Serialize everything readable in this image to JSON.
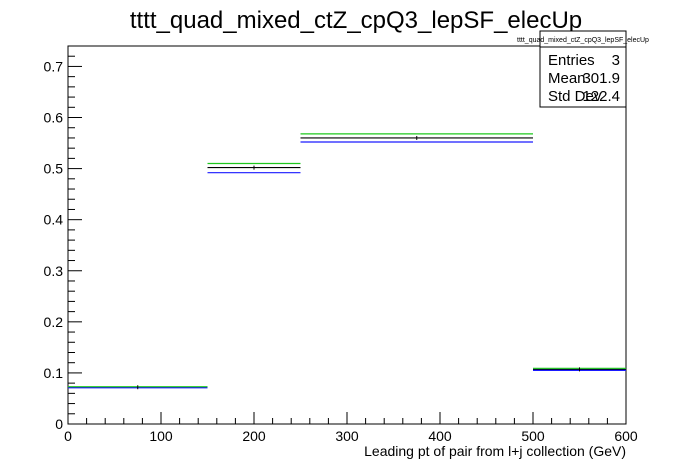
{
  "chart_data": {
    "type": "line",
    "title": "tttt_quad_mixed_ctZ_cpQ3_lepSF_elecUp",
    "xlabel": "Leading pt of pair from l+j collection (GeV)",
    "ylabel": "",
    "xlim": [
      0,
      600
    ],
    "ylim": [
      0,
      0.74
    ],
    "x_ticks": [
      0,
      100,
      200,
      300,
      400,
      500,
      600
    ],
    "y_ticks": [
      0,
      0.1,
      0.2,
      0.3,
      0.4,
      0.5,
      0.6,
      0.7
    ],
    "bins": [
      {
        "low": 0,
        "high": 150
      },
      {
        "low": 150,
        "high": 250
      },
      {
        "low": 250,
        "high": 500
      },
      {
        "low": 500,
        "high": 600
      }
    ],
    "series": [
      {
        "color": "#000000",
        "values": [
          0.072,
          0.502,
          0.56,
          0.107
        ]
      },
      {
        "color": "#1a1aff",
        "values": [
          0.071,
          0.492,
          0.552,
          0.105
        ]
      },
      {
        "color": "#1ec81e",
        "values": [
          0.073,
          0.51,
          0.568,
          0.109
        ]
      }
    ],
    "legend": "none",
    "grid": false
  },
  "stats": {
    "title": "tttt_quad_mixed_ctZ_cpQ3_lepSF_elecUp",
    "rows": [
      {
        "label": "Entries",
        "value": "3"
      },
      {
        "label": "Mean",
        "value": "301.9"
      },
      {
        "label": "Std Dev",
        "value": "122.4"
      }
    ]
  }
}
